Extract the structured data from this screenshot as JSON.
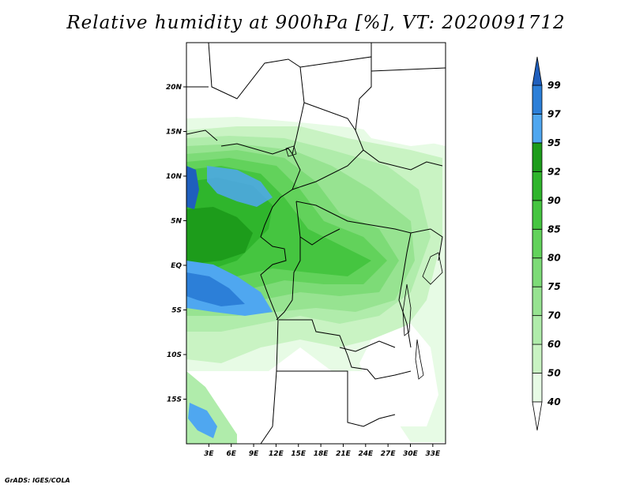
{
  "title": "Relative humidity at 900hPa [%], VT: 2020091712",
  "credit": "GrADS: IGES/COLA",
  "map": {
    "lat_labels": [
      {
        "text": "20N",
        "lat": 20
      },
      {
        "text": "15N",
        "lat": 15
      },
      {
        "text": "10N",
        "lat": 10
      },
      {
        "text": "5N",
        "lat": 5
      },
      {
        "text": "EQ",
        "lat": 0
      },
      {
        "text": "5S",
        "lat": -5
      },
      {
        "text": "10S",
        "lat": -10
      },
      {
        "text": "15S",
        "lat": -15
      }
    ],
    "lon_labels": [
      {
        "text": "3E",
        "lon": 3
      },
      {
        "text": "6E",
        "lon": 6
      },
      {
        "text": "9E",
        "lon": 9
      },
      {
        "text": "12E",
        "lon": 12
      },
      {
        "text": "15E",
        "lon": 15
      },
      {
        "text": "18E",
        "lon": 18
      },
      {
        "text": "21E",
        "lon": 21
      },
      {
        "text": "24E",
        "lon": 24
      },
      {
        "text": "27E",
        "lon": 27
      },
      {
        "text": "30E",
        "lon": 30
      },
      {
        "text": "33E",
        "lon": 33
      }
    ],
    "extent": {
      "lon": [
        0,
        35
      ],
      "lat": [
        -20,
        25
      ]
    }
  },
  "colorbar": {
    "levels": [
      "40",
      "50",
      "60",
      "70",
      "75",
      "80",
      "85",
      "90",
      "92",
      "95",
      "97",
      "99"
    ],
    "colors": [
      "#e7fbe5",
      "#c9f3c3",
      "#b0ecab",
      "#97e391",
      "#7ddb77",
      "#62d25b",
      "#45c540",
      "#2fb52c",
      "#1d9c1b",
      "#4fa7f0",
      "#2c7fd8",
      "#1f5fbd"
    ]
  }
}
